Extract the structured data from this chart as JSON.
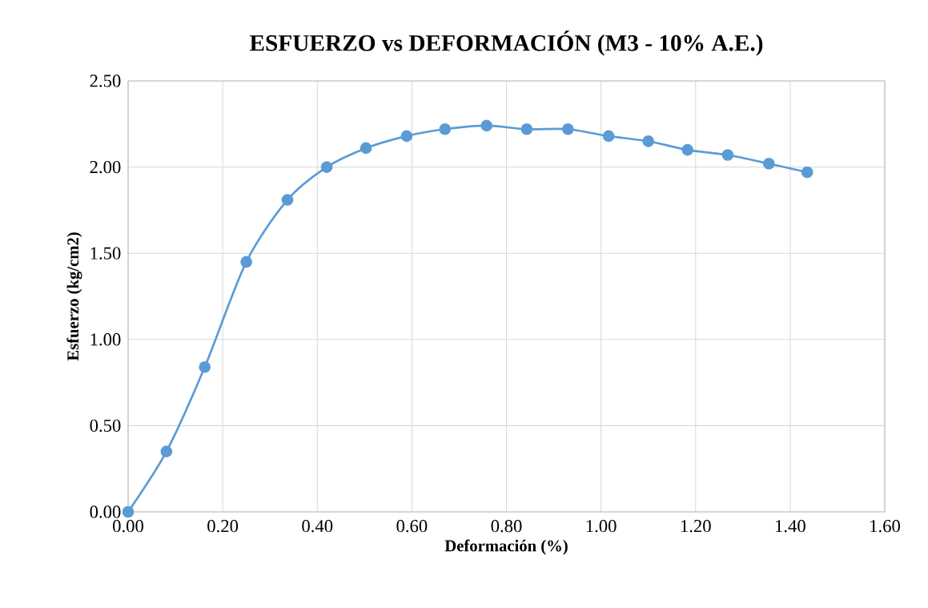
{
  "chart_data": {
    "type": "line",
    "title": "ESFUERZO vs DEFORMACIÓN (M3 - 10% A.E.)",
    "xlabel": "Deformación (%)",
    "ylabel": "Esfuerzo (kg/cm2)",
    "x": [
      0,
      0.081,
      0.162,
      0.25,
      0.337,
      0.42,
      0.503,
      0.589,
      0.67,
      0.758,
      0.843,
      0.93,
      1.016,
      1.1,
      1.183,
      1.268,
      1.355,
      1.436
    ],
    "series": [
      {
        "color": "#5b9bd5",
        "values": [
          0,
          0.35,
          0.84,
          1.45,
          1.81,
          2.0,
          2.11,
          2.18,
          2.22,
          2.24,
          2.22,
          2.22,
          2.18,
          2.15,
          2.1,
          2.07,
          2.02,
          1.97
        ]
      }
    ],
    "xlim": [
      0,
      1.6
    ],
    "xticks": [
      {
        "value": 0,
        "label": "0.00"
      },
      {
        "value": 0.2,
        "label": "0.20"
      },
      {
        "value": 0.4,
        "label": "0.40"
      },
      {
        "value": 0.6,
        "label": "0.60"
      },
      {
        "value": 0.8,
        "label": "0.80"
      },
      {
        "value": 1.0,
        "label": "1.00"
      },
      {
        "value": 1.2,
        "label": "1.20"
      },
      {
        "value": 1.4,
        "label": "1.40"
      },
      {
        "value": 1.6,
        "label": "1.60"
      }
    ],
    "ylim": [
      0,
      2.5
    ],
    "yticks": [
      {
        "value": 0,
        "label": "0.00"
      },
      {
        "value": 0.5,
        "label": "0.50"
      },
      {
        "value": 1.0,
        "label": "1.00"
      },
      {
        "value": 1.5,
        "label": "1.50"
      },
      {
        "value": 2.0,
        "label": "2.00"
      },
      {
        "value": 2.5,
        "label": "2.50"
      }
    ],
    "grid": true,
    "marker": "circle",
    "line_style": "solid"
  }
}
